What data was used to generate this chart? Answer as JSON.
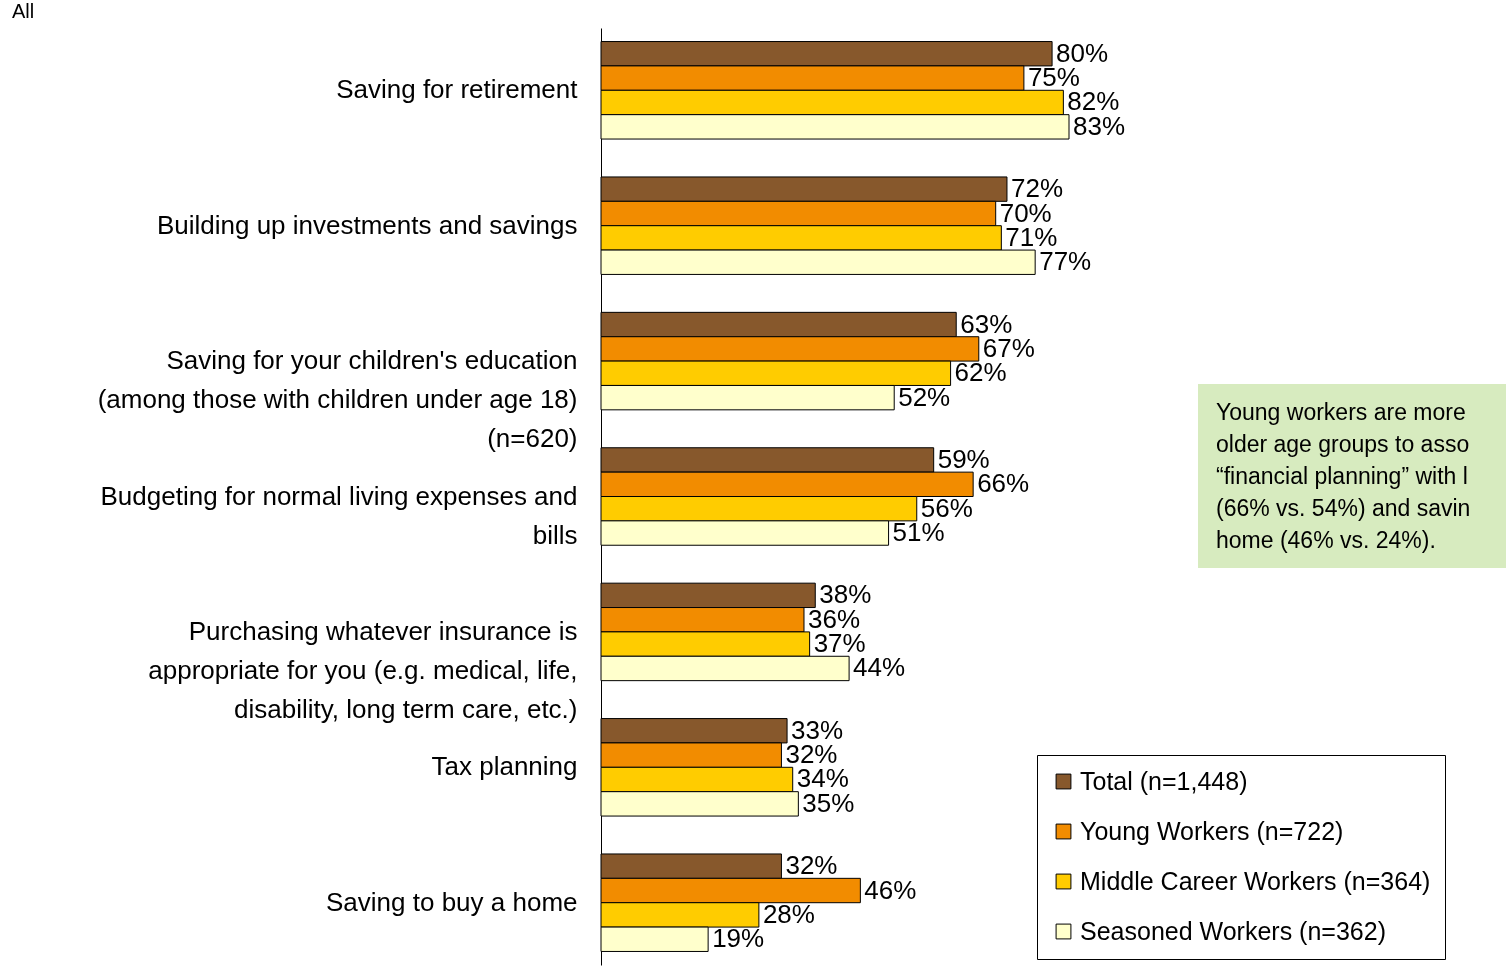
{
  "chart_data": {
    "type": "bar",
    "orientation": "horizontal",
    "title": "All",
    "categories": [
      "Saving for retirement",
      "Building up investments and savings",
      "Saving for your children's education (among those with children under age 18) (n=620)",
      "Budgeting for normal living expenses and bills",
      "Purchasing whatever insurance is appropriate for you (e.g. medical, life, disability, long term care, etc.)",
      "Tax planning",
      "Saving to buy a home"
    ],
    "series": [
      {
        "name": "Total (n=1,448)",
        "color": "#87582c",
        "values": [
          80,
          72,
          63,
          59,
          38,
          33,
          32
        ],
        "value_labels": [
          "80%",
          "72%",
          "63%",
          "59%",
          "38%",
          "33%",
          "32%"
        ]
      },
      {
        "name": "Young Workers (n=722)",
        "color": "#f28c00",
        "values": [
          75,
          70,
          67,
          66,
          36,
          32,
          46
        ],
        "value_labels": [
          "75%",
          "70%",
          "67%",
          "66%",
          "36%",
          "32%",
          "46%"
        ]
      },
      {
        "name": "Middle Career Workers (n=364)",
        "color": "#ffcc00",
        "values": [
          82,
          71,
          62,
          56,
          37,
          34,
          28
        ],
        "value_labels": [
          "82%",
          "71%",
          "62%",
          "56%",
          "37%",
          "34%",
          "28%"
        ]
      },
      {
        "name": "Seasoned Workers (n=362)",
        "color": "#ffffcc",
        "values": [
          83,
          77,
          52,
          51,
          44,
          35,
          19
        ],
        "value_labels": [
          "83%",
          "77%",
          "52%",
          "51%",
          "44%",
          "35%",
          "19%"
        ]
      }
    ],
    "legend": "bottom right",
    "tick_labels": "y",
    "annotations": [
      "Young workers are more\nolder age groups to asso\n“financial planning” with l\n(66% vs. 54%) and savin\nhome (46% vs. 24%)."
    ]
  }
}
